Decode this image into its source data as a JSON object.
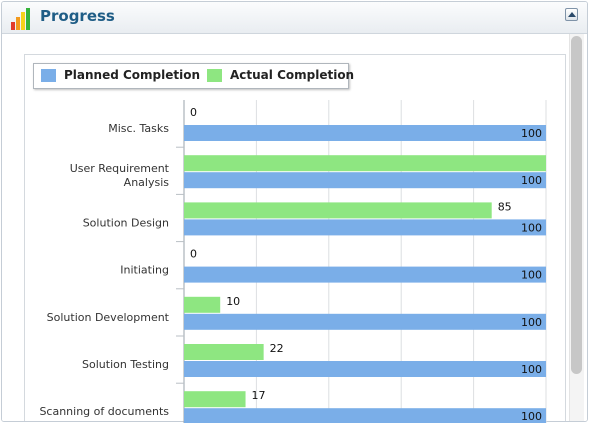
{
  "window": {
    "title": "Progress"
  },
  "icons": {
    "app": "bar-chart-icon",
    "collapse": "collapse-up-icon"
  },
  "colors": {
    "planned": "#7aaee8",
    "actual": "#8ee681",
    "title": "#1f5d86"
  },
  "chart_data": {
    "type": "bar",
    "orientation": "horizontal",
    "categories": [
      [
        "Misc. Tasks"
      ],
      [
        "User Requirement",
        "Analysis"
      ],
      [
        "Solution Design"
      ],
      [
        "Initiating"
      ],
      [
        "Solution Development"
      ],
      [
        "Solution Testing"
      ],
      [
        "Scanning of documents"
      ]
    ],
    "series": [
      {
        "name": "Planned Completion",
        "values": [
          100,
          100,
          100,
          100,
          100,
          100,
          100
        ]
      },
      {
        "name": "Actual Completion",
        "values": [
          0,
          100,
          85,
          0,
          10,
          22,
          17
        ]
      }
    ],
    "xlim": [
      0,
      100
    ],
    "legend_position": "top-left",
    "grid": true
  }
}
